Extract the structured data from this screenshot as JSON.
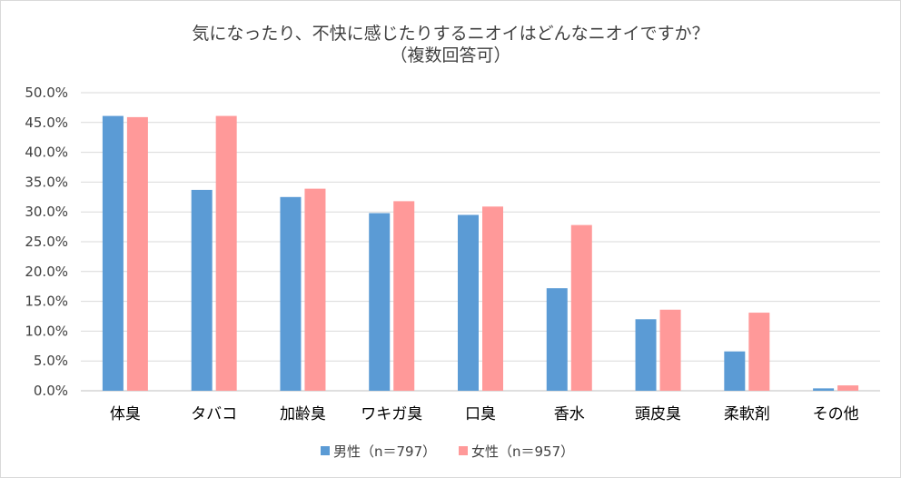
{
  "chart_data": {
    "type": "bar",
    "title": "気になったり、不快に感じたりするニオイはどんなニオイですか？",
    "subtitle": "（複数回答可）",
    "xlabel": "",
    "ylabel": "",
    "ylim": [
      0,
      0.5
    ],
    "yticks": [
      "0.0%",
      "5.0%",
      "10.0%",
      "15.0%",
      "20.0%",
      "25.0%",
      "30.0%",
      "35.0%",
      "40.0%",
      "45.0%",
      "50.0%"
    ],
    "categories": [
      "体臭",
      "タバコ",
      "加齢臭",
      "ワキガ臭",
      "口臭",
      "香水",
      "頭皮臭",
      "柔軟剤",
      "その他"
    ],
    "series": [
      {
        "name": "男性（n＝797）",
        "color": "#5b9bd5",
        "values": [
          0.461,
          0.337,
          0.325,
          0.298,
          0.295,
          0.172,
          0.12,
          0.066,
          0.004
        ]
      },
      {
        "name": "女性（n＝957）",
        "color": "#ff9999",
        "values": [
          0.459,
          0.461,
          0.339,
          0.318,
          0.309,
          0.278,
          0.136,
          0.131,
          0.009
        ]
      }
    ],
    "grid": true,
    "legend": "bottom"
  }
}
